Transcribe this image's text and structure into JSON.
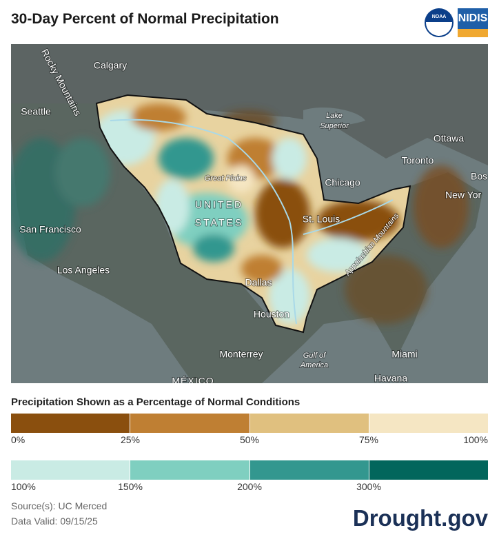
{
  "header": {
    "title": "30-Day Percent of Normal Precipitation",
    "logos": [
      "NOAA",
      "NIDIS"
    ]
  },
  "map": {
    "labels": [
      "Rocky Mountains",
      "Calgary",
      "Seattle",
      "Lake",
      "Superior",
      "Ottawa",
      "Toronto",
      "Bos",
      "New Yor",
      "Chicago",
      "Great Plains",
      "UNITED",
      "STATES",
      "St. Louis",
      "San Francisco",
      "Los Angeles",
      "Appalachian Mountains",
      "Dallas",
      "Houston",
      "Monterrey",
      "Gulf of",
      "America",
      "Miami",
      "Havana",
      "MÉXICO"
    ]
  },
  "legend": {
    "title": "Precipitation Shown as a Percentage of Normal Conditions",
    "rows": [
      {
        "colors": [
          "#8a4f0e",
          "#bf7f33",
          "#e0c07f",
          "#f5e6c3"
        ],
        "labels": [
          "0%",
          "25%",
          "50%",
          "75%",
          "100%"
        ]
      },
      {
        "colors": [
          "#c9ebe4",
          "#7fcfc0",
          "#33978f",
          "#02665c"
        ],
        "labels": [
          "100%",
          "150%",
          "200%",
          "300%"
        ]
      }
    ]
  },
  "footer": {
    "source": "Source(s): UC Merced",
    "valid": "Data Valid: 09/15/25",
    "brand": "Drought.gov"
  }
}
